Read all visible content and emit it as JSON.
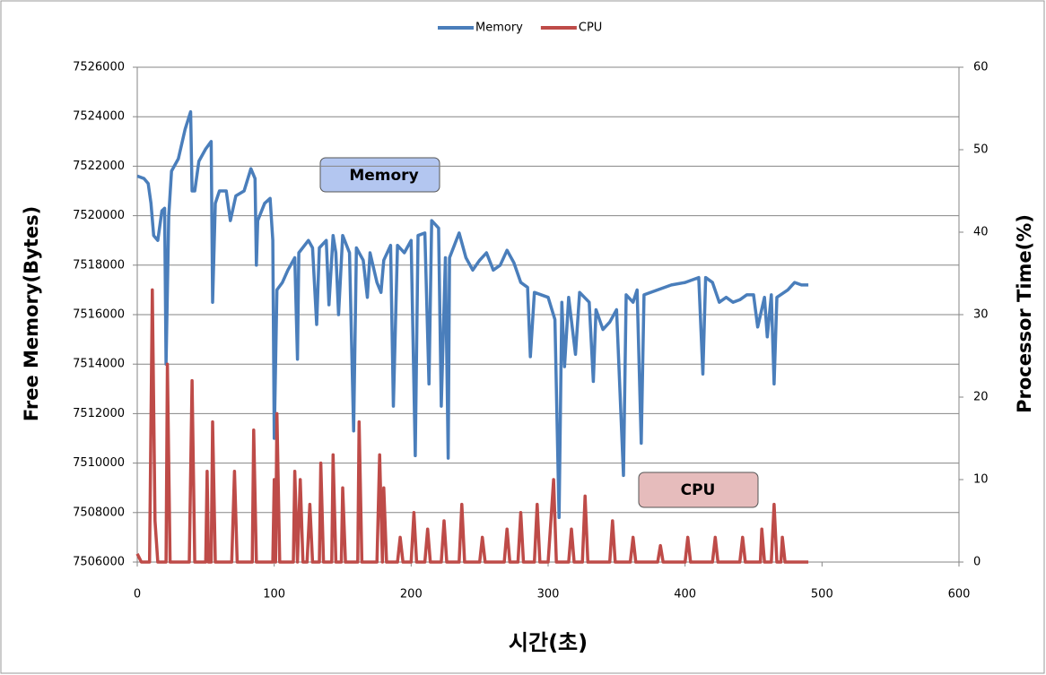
{
  "chart_data": {
    "type": "line",
    "xlabel": "시간(초)",
    "ylabel": "Free Memory(Bytes)",
    "y2label": "Processor Time(%)",
    "xlim": [
      0,
      600
    ],
    "xticks": [
      0,
      100,
      200,
      300,
      400,
      500,
      600
    ],
    "ylim": [
      7506000,
      7526000
    ],
    "yticks": [
      7506000,
      7508000,
      7510000,
      7512000,
      7514000,
      7516000,
      7518000,
      7520000,
      7522000,
      7524000,
      7526000
    ],
    "y2lim": [
      0,
      60
    ],
    "y2ticks": [
      0,
      10,
      20,
      30,
      40,
      50,
      60
    ],
    "grid": true,
    "legend": "top",
    "annotations": [
      "Memory",
      "CPU"
    ],
    "series": [
      {
        "name": "Memory",
        "color": "#4a7ebb",
        "x": [
          0,
          5,
          8,
          10,
          12,
          15,
          18,
          20,
          21,
          23,
          25,
          30,
          35,
          39,
          40,
          42,
          45,
          50,
          54,
          55,
          57,
          60,
          65,
          68,
          72,
          78,
          83,
          86,
          87,
          88,
          93,
          97,
          99,
          100,
          102,
          106,
          110,
          115,
          117,
          118,
          125,
          128,
          131,
          133,
          138,
          140,
          143,
          145,
          147,
          150,
          155,
          158,
          160,
          165,
          168,
          170,
          175,
          178,
          180,
          185,
          187,
          190,
          195,
          200,
          203,
          205,
          210,
          213,
          215,
          220,
          222,
          225,
          227,
          228,
          235,
          240,
          245,
          250,
          255,
          260,
          265,
          270,
          275,
          280,
          285,
          287,
          290,
          300,
          305,
          308,
          310,
          312,
          315,
          320,
          323,
          330,
          333,
          335,
          340,
          345,
          350,
          355,
          357,
          362,
          365,
          368,
          370,
          380,
          390,
          400,
          410,
          413,
          415,
          420,
          425,
          430,
          435,
          440,
          445,
          450,
          453,
          458,
          460,
          463,
          465,
          467,
          475,
          480,
          485,
          490
        ],
        "values": [
          7521600,
          7521500,
          7521300,
          7520500,
          7519200,
          7519000,
          7520200,
          7520300,
          7514000,
          7520000,
          7521800,
          7522300,
          7523500,
          7524200,
          7521000,
          7521000,
          7522200,
          7522700,
          7523000,
          7516500,
          7520500,
          7521000,
          7521000,
          7519800,
          7520800,
          7521000,
          7521900,
          7521500,
          7518000,
          7519800,
          7520500,
          7520700,
          7519000,
          7511000,
          7517000,
          7517300,
          7517800,
          7518300,
          7514200,
          7518500,
          7519000,
          7518700,
          7515600,
          7518700,
          7519000,
          7516400,
          7519200,
          7518500,
          7516000,
          7519200,
          7518500,
          7511300,
          7518700,
          7518200,
          7516700,
          7518500,
          7517300,
          7516900,
          7518200,
          7518800,
          7512300,
          7518800,
          7518500,
          7519000,
          7510300,
          7519200,
          7519300,
          7513200,
          7519800,
          7519500,
          7512300,
          7518300,
          7510200,
          7518300,
          7519300,
          7518300,
          7517800,
          7518200,
          7518500,
          7517800,
          7518000,
          7518600,
          7518100,
          7517300,
          7517100,
          7514300,
          7516900,
          7516700,
          7515800,
          7507800,
          7516500,
          7513900,
          7516700,
          7514400,
          7516900,
          7516500,
          7513300,
          7516200,
          7515400,
          7515700,
          7516200,
          7509500,
          7516800,
          7516500,
          7517000,
          7510800,
          7516800,
          7517000,
          7517200,
          7517300,
          7517500,
          7513600,
          7517500,
          7517300,
          7516500,
          7516700,
          7516500,
          7516600,
          7516800,
          7516800,
          7515500,
          7516700,
          7515100,
          7516800,
          7513200,
          7516700,
          7517000,
          7517300,
          7517200,
          7517200
        ]
      },
      {
        "name": "CPU",
        "color": "#be4b48",
        "axis": "y2",
        "x": [
          0,
          3,
          9,
          11,
          13,
          15,
          21,
          22,
          24,
          38,
          40,
          42,
          50,
          51,
          52,
          54,
          55,
          57,
          69,
          71,
          73,
          84,
          85,
          87,
          99,
          100,
          101,
          102,
          104,
          114,
          115,
          117,
          119,
          121,
          124,
          126,
          128,
          133,
          134,
          136,
          142,
          143,
          145,
          149,
          150,
          152,
          161,
          162,
          164,
          175,
          177,
          179,
          180,
          182,
          190,
          192,
          194,
          200,
          202,
          204,
          210,
          212,
          214,
          222,
          224,
          226,
          235,
          237,
          239,
          250,
          252,
          254,
          268,
          270,
          272,
          278,
          280,
          282,
          290,
          292,
          294,
          300,
          302,
          304,
          306,
          315,
          317,
          319,
          325,
          327,
          329,
          345,
          347,
          349,
          360,
          362,
          364,
          380,
          382,
          384,
          400,
          402,
          404,
          420,
          422,
          424,
          440,
          442,
          444,
          455,
          456,
          458,
          463,
          465,
          467,
          470,
          471,
          473,
          490
        ],
        "values": [
          1,
          0,
          0,
          33,
          5,
          0,
          0,
          24,
          0,
          0,
          22,
          0,
          0,
          11,
          0,
          0,
          17,
          0,
          0,
          11,
          0,
          0,
          16,
          0,
          0,
          10,
          0,
          18,
          0,
          0,
          11,
          0,
          10,
          0,
          0,
          7,
          0,
          0,
          12,
          0,
          0,
          13,
          0,
          0,
          9,
          0,
          0,
          17,
          0,
          0,
          13,
          0,
          9,
          0,
          0,
          3,
          0,
          0,
          6,
          0,
          0,
          4,
          0,
          0,
          5,
          0,
          0,
          7,
          0,
          0,
          3,
          0,
          0,
          4,
          0,
          0,
          6,
          0,
          0,
          7,
          0,
          0,
          5,
          10,
          0,
          0,
          4,
          0,
          0,
          8,
          0,
          0,
          5,
          0,
          0,
          3,
          0,
          0,
          2,
          0,
          0,
          3,
          0,
          0,
          3,
          0,
          0,
          3,
          0,
          0,
          4,
          0,
          0,
          7,
          0,
          0,
          3,
          0,
          0
        ]
      }
    ]
  }
}
